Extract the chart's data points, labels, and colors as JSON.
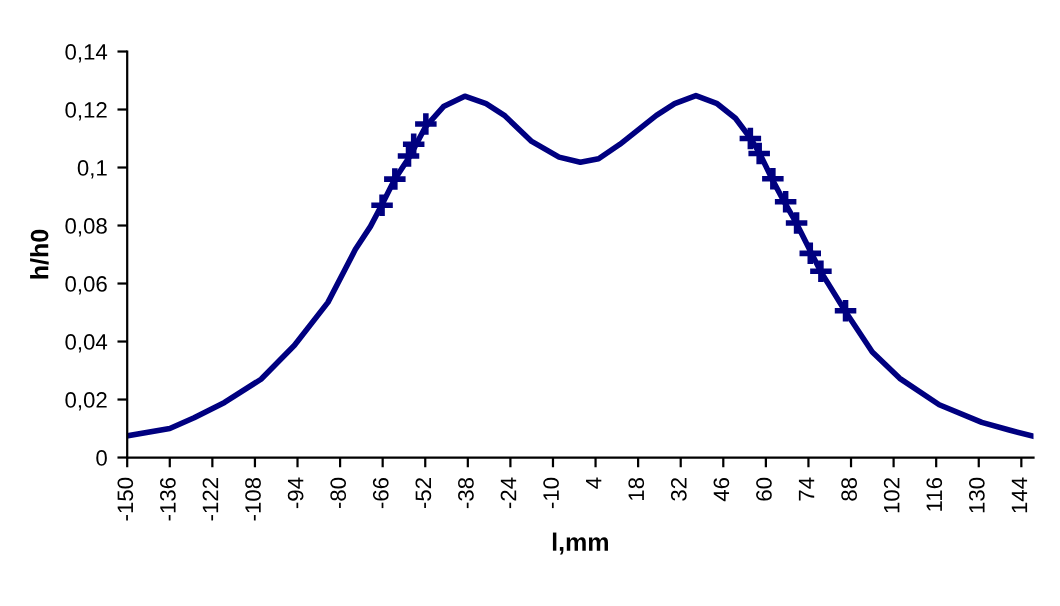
{
  "chart_data": {
    "type": "line",
    "xlabel": "l,mm",
    "ylabel": "h/h0",
    "series": [
      {
        "color": "#000080",
        "marker": "none",
        "x": [
          -150,
          -136,
          -128,
          -118,
          -106,
          -95,
          -84,
          -75,
          -70,
          -66,
          -62,
          -57,
          -52,
          -46,
          -39,
          -32,
          -26,
          -17,
          -8,
          -1,
          5,
          12,
          18,
          24,
          30,
          37,
          44,
          50,
          55,
          58,
          62,
          66,
          70,
          75,
          78,
          86,
          95,
          104,
          117,
          131,
          140,
          148
        ],
        "values": [
          0.0075,
          0.01,
          0.0137,
          0.019,
          0.027,
          0.0387,
          0.0535,
          0.0717,
          0.0797,
          0.0877,
          0.096,
          0.104,
          0.1139,
          0.121,
          0.1246,
          0.122,
          0.118,
          0.109,
          0.1036,
          0.1018,
          0.103,
          0.108,
          0.113,
          0.118,
          0.122,
          0.1248,
          0.122,
          0.117,
          0.11,
          0.1048,
          0.0961,
          0.0882,
          0.0809,
          0.0704,
          0.0642,
          0.0506,
          0.0364,
          0.0273,
          0.0182,
          0.0121,
          0.0095,
          0.0073
        ]
      },
      {
        "type": "scatter",
        "color": "#000080",
        "marker": "cross",
        "x": [
          -66.2,
          -62.0,
          -57.5,
          -55.8,
          -51.8,
          54.9,
          57.8,
          62.3,
          66.5,
          70.1,
          74.6,
          78.1,
          86.2
        ],
        "values": [
          0.087,
          0.096,
          0.104,
          0.108,
          0.115,
          0.11,
          0.1048,
          0.0961,
          0.0882,
          0.0809,
          0.0704,
          0.0642,
          0.0506
        ]
      }
    ],
    "xlim": [
      -150,
      148
    ],
    "xticks": [
      -150,
      -136,
      -122,
      -108,
      -94,
      -80,
      -66,
      -52,
      -38,
      -24,
      -10,
      4,
      18,
      32,
      46,
      60,
      74,
      88,
      102,
      116,
      130,
      144
    ],
    "ylim": [
      0,
      0.14
    ],
    "yticks": [
      {
        "value": 0,
        "label": "0"
      },
      {
        "value": 0.02,
        "label": "0,02"
      },
      {
        "value": 0.04,
        "label": "0,04"
      },
      {
        "value": 0.06,
        "label": "0,06"
      },
      {
        "value": 0.08,
        "label": "0,08"
      },
      {
        "value": 0.1,
        "label": "0,1"
      },
      {
        "value": 0.12,
        "label": "0,12"
      },
      {
        "value": 0.14,
        "label": "0,14"
      }
    ],
    "grid": false,
    "legend": false
  }
}
